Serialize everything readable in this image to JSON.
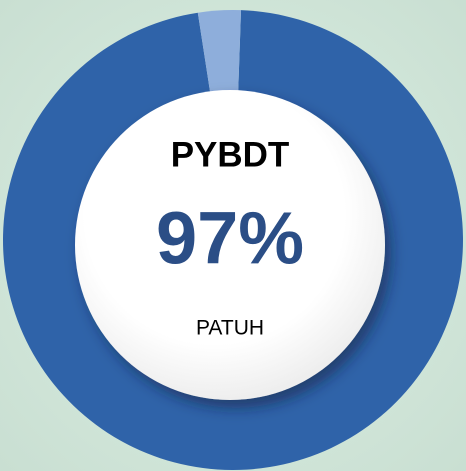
{
  "chart_data": {
    "type": "donut",
    "title": "PYBDT",
    "subtitle": "PATUH",
    "values": [
      97,
      3
    ],
    "value_labels": [
      "97%",
      null
    ],
    "colors": [
      "#2f63a9",
      "#8eaedb"
    ]
  }
}
